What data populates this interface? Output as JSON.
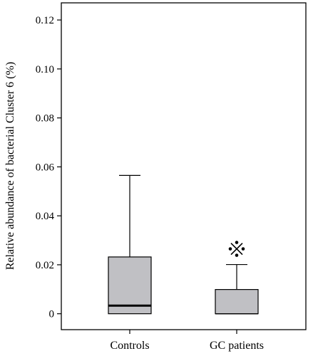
{
  "chart_data": {
    "type": "box",
    "title": "",
    "xlabel": "",
    "ylabel": "Relative abundance of bacterial Cluster 6 (%)",
    "ylim": [
      -0.0065,
      0.127
    ],
    "yticks": [
      0,
      0.02,
      0.04,
      0.06,
      0.08,
      0.1,
      0.12
    ],
    "ytick_labels": [
      "0",
      "0.02",
      "0.04",
      "0.06",
      "0.08",
      "0.10",
      "0.12"
    ],
    "grid": false,
    "legend": "none",
    "categories": [
      "Controls",
      "GC patients"
    ],
    "boxes": [
      {
        "category": "Controls",
        "whisker_low": 0,
        "q1": 0,
        "median": 0.0033,
        "q3": 0.0232,
        "whisker_high": 0.0565,
        "outlier_markers": []
      },
      {
        "category": "GC patients",
        "whisker_low": 0,
        "q1": 0,
        "median": 0,
        "q3": 0.0099,
        "whisker_high": 0.0201,
        "outlier_markers": [
          0.0265
        ]
      }
    ],
    "colors": {
      "box_fill": "#c0c0c4",
      "line": "#000000"
    },
    "outlier_marker": "reference-mark-symbol"
  }
}
